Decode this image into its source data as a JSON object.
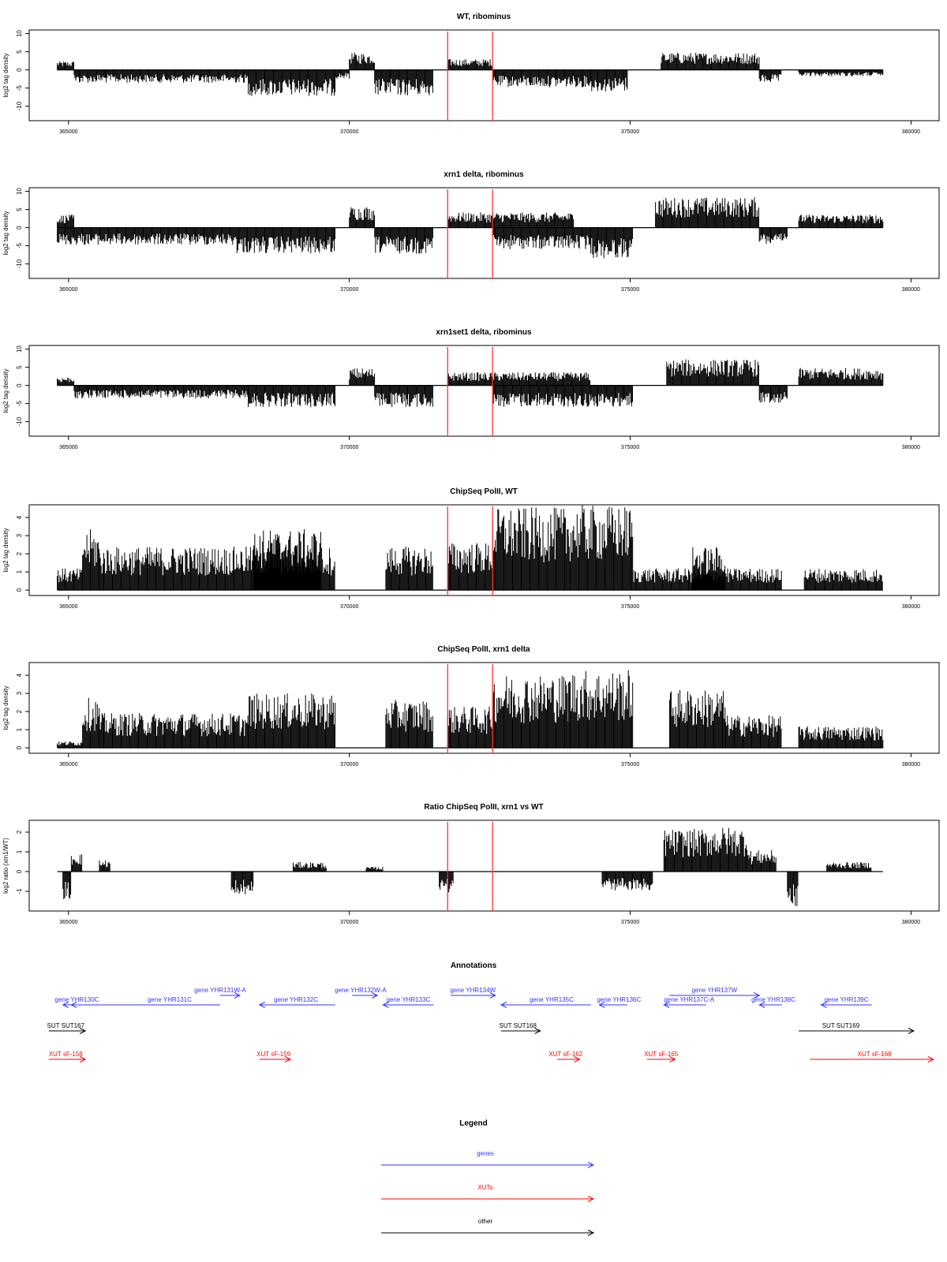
{
  "chart_data": [
    {
      "type": "area",
      "title": "WT, ribominus",
      "ylabel": "log2 tag density",
      "xlim": [
        364300,
        380500
      ],
      "ylim": [
        -14,
        11
      ],
      "x_ticks": [
        365000,
        370000,
        375000,
        380000
      ],
      "y_ticks": [
        10,
        5,
        0,
        -5,
        -10
      ],
      "markers": [
        371750,
        372550
      ],
      "segments": [
        {
          "x": [
            364800,
            365100
          ],
          "y": 2
        },
        {
          "x": [
            365100,
            368200
          ],
          "y": -3
        },
        {
          "x": [
            368200,
            369750
          ],
          "y": -6
        },
        {
          "x": [
            369750,
            370000
          ],
          "y": -2
        },
        {
          "x": [
            370000,
            370450
          ],
          "y": 4
        },
        {
          "x": [
            370450,
            371500
          ],
          "y": -6
        },
        {
          "x": [
            371750,
            372550
          ],
          "y": 2.5
        },
        {
          "x": [
            372550,
            374300
          ],
          "y": -4
        },
        {
          "x": [
            374300,
            374950
          ],
          "y": -5
        },
        {
          "x": [
            375550,
            377300
          ],
          "y": 4
        },
        {
          "x": [
            377300,
            377700
          ],
          "y": -3
        },
        {
          "x": [
            378000,
            379500
          ],
          "y": -1.5
        }
      ]
    },
    {
      "type": "area",
      "title": "xrn1 delta, ribominus",
      "ylabel": "log2 tag density",
      "xlim": [
        364300,
        380500
      ],
      "ylim": [
        -14,
        11
      ],
      "x_ticks": [
        365000,
        370000,
        375000,
        380000
      ],
      "y_ticks": [
        10,
        5,
        0,
        -5,
        -10
      ],
      "markers": [
        371750,
        372550
      ],
      "segments": [
        {
          "x": [
            364800,
            365100
          ],
          "y": 3
        },
        {
          "x": [
            364800,
            368000
          ],
          "y": -4
        },
        {
          "x": [
            368000,
            369750
          ],
          "y": -6
        },
        {
          "x": [
            370000,
            370450
          ],
          "y": 5
        },
        {
          "x": [
            370450,
            371500
          ],
          "y": -6
        },
        {
          "x": [
            371750,
            374000
          ],
          "y": 3.5
        },
        {
          "x": [
            372550,
            374300
          ],
          "y": -5
        },
        {
          "x": [
            374300,
            375050
          ],
          "y": -7
        },
        {
          "x": [
            375450,
            377300
          ],
          "y": 7
        },
        {
          "x": [
            377300,
            377800
          ],
          "y": -4
        },
        {
          "x": [
            378000,
            379500
          ],
          "y": 3
        }
      ]
    },
    {
      "type": "area",
      "title": "xrn1set1 delta, ribominus",
      "ylabel": "log2 tag density",
      "xlim": [
        364300,
        380500
      ],
      "ylim": [
        -14,
        11
      ],
      "x_ticks": [
        365000,
        370000,
        375000,
        380000
      ],
      "y_ticks": [
        10,
        5,
        0,
        -5,
        -10
      ],
      "markers": [
        371750,
        372550
      ],
      "segments": [
        {
          "x": [
            364800,
            365100
          ],
          "y": 2
        },
        {
          "x": [
            365100,
            368200
          ],
          "y": -3
        },
        {
          "x": [
            368200,
            369750
          ],
          "y": -5
        },
        {
          "x": [
            370000,
            370450
          ],
          "y": 4
        },
        {
          "x": [
            370450,
            371500
          ],
          "y": -5
        },
        {
          "x": [
            371750,
            374300
          ],
          "y": 3
        },
        {
          "x": [
            372550,
            374300
          ],
          "y": -5
        },
        {
          "x": [
            374300,
            375050
          ],
          "y": -5
        },
        {
          "x": [
            375650,
            377300
          ],
          "y": 6
        },
        {
          "x": [
            377300,
            377800
          ],
          "y": -4
        },
        {
          "x": [
            378000,
            379500
          ],
          "y": 4
        }
      ]
    },
    {
      "type": "area",
      "title": "ChipSeq PolII, WT",
      "ylabel": "log2 tag density",
      "xlim": [
        364300,
        380500
      ],
      "ylim": [
        -0.3,
        4.7
      ],
      "x_ticks": [
        365000,
        370000,
        375000,
        380000
      ],
      "y_ticks": [
        0,
        1,
        2,
        3,
        4
      ],
      "markers": [
        371750,
        372550
      ],
      "segments": [
        {
          "x": [
            364800,
            365250
          ],
          "y": 1
        },
        {
          "x": [
            365250,
            365550
          ],
          "y": 2.8
        },
        {
          "x": [
            365550,
            369750
          ],
          "y": 2
        },
        {
          "x": [
            368300,
            369500
          ],
          "y": 2.8
        },
        {
          "x": [
            370650,
            371500
          ],
          "y": 2
        },
        {
          "x": [
            371750,
            372550
          ],
          "y": 2.2
        },
        {
          "x": [
            372550,
            373900
          ],
          "y": 3.8
        },
        {
          "x": [
            373900,
            375050
          ],
          "y": 3.9
        },
        {
          "x": [
            375050,
            377700
          ],
          "y": 1
        },
        {
          "x": [
            376100,
            376700
          ],
          "y": 2
        },
        {
          "x": [
            378100,
            379500
          ],
          "y": 1
        }
      ]
    },
    {
      "type": "area",
      "title": "ChipSeq PolII, xrn1 delta",
      "ylabel": "log2 tag density",
      "xlim": [
        364300,
        380500
      ],
      "ylim": [
        -0.3,
        4.7
      ],
      "x_ticks": [
        365000,
        370000,
        375000,
        380000
      ],
      "y_ticks": [
        0,
        1,
        2,
        3,
        4
      ],
      "markers": [
        371750,
        372550
      ],
      "segments": [
        {
          "x": [
            364800,
            365250
          ],
          "y": 0.3
        },
        {
          "x": [
            365250,
            365550
          ],
          "y": 2.3
        },
        {
          "x": [
            365550,
            368200
          ],
          "y": 1.6
        },
        {
          "x": [
            368200,
            369750
          ],
          "y": 2.5
        },
        {
          "x": [
            370650,
            371500
          ],
          "y": 2.2
        },
        {
          "x": [
            371750,
            372550
          ],
          "y": 1.9
        },
        {
          "x": [
            372550,
            373900
          ],
          "y": 3.4
        },
        {
          "x": [
            373900,
            375050
          ],
          "y": 3.6
        },
        {
          "x": [
            375700,
            376700
          ],
          "y": 2.7
        },
        {
          "x": [
            376700,
            377700
          ],
          "y": 1.5
        },
        {
          "x": [
            378000,
            379500
          ],
          "y": 1
        }
      ]
    },
    {
      "type": "area",
      "title": "Ratio ChipSeq PolII, xrn1 vs WT",
      "ylabel": "log2 ratio (xrn1/WT)",
      "xlim": [
        364300,
        380500
      ],
      "ylim": [
        -2,
        2.6
      ],
      "x_ticks": [
        365000,
        370000,
        375000,
        380000
      ],
      "y_ticks": [
        -1,
        0,
        1,
        2
      ],
      "markers": [
        371750,
        372550
      ],
      "segments": [
        {
          "x": [
            364900,
            365050
          ],
          "y": -1.2
        },
        {
          "x": [
            365050,
            365250
          ],
          "y": 0.8
        },
        {
          "x": [
            365550,
            365750
          ],
          "y": 0.5
        },
        {
          "x": [
            367900,
            368300
          ],
          "y": -1
        },
        {
          "x": [
            369000,
            369600
          ],
          "y": 0.4
        },
        {
          "x": [
            370300,
            370600
          ],
          "y": 0.2
        },
        {
          "x": [
            371600,
            371850
          ],
          "y": -0.9
        },
        {
          "x": [
            374500,
            375400
          ],
          "y": -0.8
        },
        {
          "x": [
            375600,
            376400
          ],
          "y": 1.8
        },
        {
          "x": [
            376400,
            377100
          ],
          "y": 1.9
        },
        {
          "x": [
            377100,
            377600
          ],
          "y": 0.9
        },
        {
          "x": [
            377800,
            378000
          ],
          "y": -1.5
        },
        {
          "x": [
            378500,
            379300
          ],
          "y": 0.4
        }
      ]
    }
  ],
  "annotations": {
    "title": "Annotations",
    "xlim": [
      364300,
      380500
    ],
    "features": [
      {
        "label": "gene YHR130C",
        "x": [
          365400,
          364900
        ],
        "row": 0,
        "color": "#3333ff",
        "label_x": 365150
      },
      {
        "label": "gene YHR131C",
        "x": [
          367700,
          365050
        ],
        "row": 0,
        "color": "#3333ff",
        "label_x": 366800
      },
      {
        "label": "gene YHR131W-A",
        "x": [
          367700,
          368050
        ],
        "row": -1,
        "color": "#3333ff",
        "label_x": 367700
      },
      {
        "label": "gene YHR132C",
        "x": [
          369750,
          368400
        ],
        "row": 0,
        "color": "#3333ff",
        "label_x": 369050
      },
      {
        "label": "gene YHR132W-A",
        "x": [
          370050,
          370500
        ],
        "row": -1,
        "color": "#3333ff",
        "label_x": 370200
      },
      {
        "label": "gene YHR133C",
        "x": [
          371500,
          370600
        ],
        "row": 0,
        "color": "#3333ff",
        "label_x": 371050
      },
      {
        "label": "gene YHR134W",
        "x": [
          371800,
          372600
        ],
        "row": -1,
        "color": "#3333ff",
        "label_x": 372200
      },
      {
        "label": "gene YHR135C",
        "x": [
          374300,
          372700
        ],
        "row": 0,
        "color": "#3333ff",
        "label_x": 373600
      },
      {
        "label": "gene YHR136C",
        "x": [
          374950,
          374450
        ],
        "row": 0,
        "color": "#3333ff",
        "label_x": 374800
      },
      {
        "label": "gene YHR137W",
        "x": [
          375700,
          377300
        ],
        "row": -1,
        "color": "#3333ff",
        "label_x": 376500
      },
      {
        "label": "gene YHR137C-A",
        "x": [
          376350,
          375600
        ],
        "row": 0,
        "color": "#3333ff",
        "label_x": 376050
      },
      {
        "label": "gene YHR138C",
        "x": [
          377700,
          377300
        ],
        "row": 0,
        "color": "#3333ff",
        "label_x": 377550
      },
      {
        "label": "gene YHR139C",
        "x": [
          379300,
          378400
        ],
        "row": 0,
        "color": "#3333ff",
        "label_x": 378850
      },
      {
        "label": "SUT SUT167",
        "x": [
          364650,
          365300
        ],
        "row": 1,
        "color": "#000000",
        "label_x": 364950
      },
      {
        "label": "SUT SUT168",
        "x": [
          372700,
          373400
        ],
        "row": 1,
        "color": "#000000",
        "label_x": 373000
      },
      {
        "label": "SUT SUT169",
        "x": [
          378000,
          380050
        ],
        "row": 1,
        "color": "#000000",
        "label_x": 378750
      },
      {
        "label": "XUT sF-158",
        "x": [
          364650,
          365300
        ],
        "row": 2,
        "color": "#ff0000",
        "label_x": 364950
      },
      {
        "label": "XUT sF-159",
        "x": [
          368400,
          368950
        ],
        "row": 2,
        "color": "#ff0000",
        "label_x": 368650
      },
      {
        "label": "XUT sF-162",
        "x": [
          373700,
          374100
        ],
        "row": 2,
        "color": "#ff0000",
        "label_x": 373850
      },
      {
        "label": "XUT sF-165",
        "x": [
          375300,
          375800
        ],
        "row": 2,
        "color": "#ff0000",
        "label_x": 375550
      },
      {
        "label": "XUT sF-168",
        "x": [
          378200,
          380400
        ],
        "row": 2,
        "color": "#ff0000",
        "label_x": 379350
      }
    ]
  },
  "legend": {
    "title": "Legend",
    "entries": [
      {
        "label": "genes",
        "color": "#3333ff"
      },
      {
        "label": "XUTs",
        "color": "#ff0000"
      },
      {
        "label": "other",
        "color": "#000000"
      }
    ]
  }
}
